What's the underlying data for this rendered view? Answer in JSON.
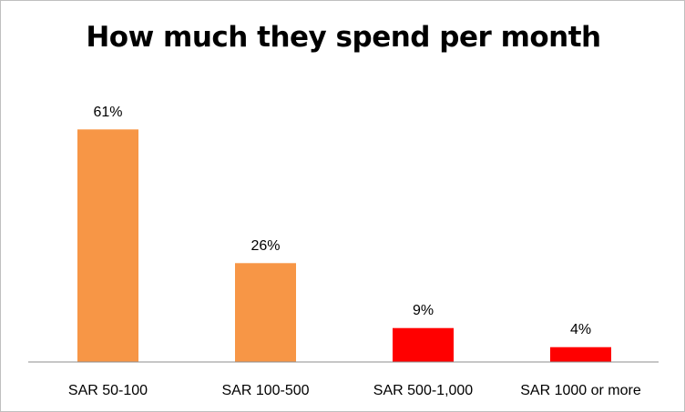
{
  "chart_data": {
    "type": "bar",
    "title": "How much they spend per month",
    "categories": [
      "SAR 50-100",
      "SAR 100-500",
      "SAR 500-1,000",
      "SAR 1000 or more"
    ],
    "values": [
      61,
      26,
      9,
      4
    ],
    "data_labels": [
      "61%",
      "26%",
      "9%",
      "4%"
    ],
    "colors": [
      "#f79646",
      "#f79646",
      "#ff0000",
      "#ff0000"
    ],
    "ylim": [
      0,
      70
    ],
    "grid": false,
    "legend": "none"
  }
}
